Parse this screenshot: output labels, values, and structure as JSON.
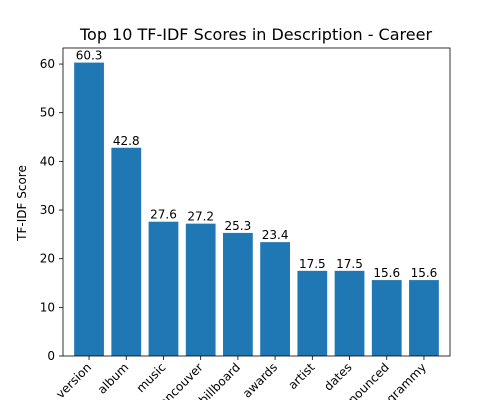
{
  "chart_data": {
    "type": "bar",
    "title": "Top 10 TF-IDF Scores in Description - Career",
    "xlabel": "",
    "ylabel": "TF-IDF Score",
    "categories": [
      "version",
      "album",
      "music",
      "vancouver",
      "billboard",
      "awards",
      "artist",
      "dates",
      "announced",
      "grammy"
    ],
    "visible_tick_labels": [
      "ersion",
      "album",
      "music",
      "couver",
      "lboard",
      "wards",
      "artist",
      "dates",
      "unced",
      "rammy"
    ],
    "values": [
      60.3,
      42.8,
      27.6,
      27.2,
      25.3,
      23.4,
      17.5,
      17.5,
      15.6,
      15.6
    ],
    "value_labels": [
      "60.3",
      "42.8",
      "27.6",
      "27.2",
      "25.3",
      "23.4",
      "17.5",
      "17.5",
      "15.6",
      "15.6"
    ],
    "ylim": [
      0,
      63.3
    ],
    "yticks": [
      0,
      10,
      20,
      30,
      40,
      50,
      60
    ],
    "grid": false,
    "legend": "none",
    "colors": {
      "bar": "#1f77b4",
      "axis": "#000000",
      "background": "#ffffff"
    }
  }
}
